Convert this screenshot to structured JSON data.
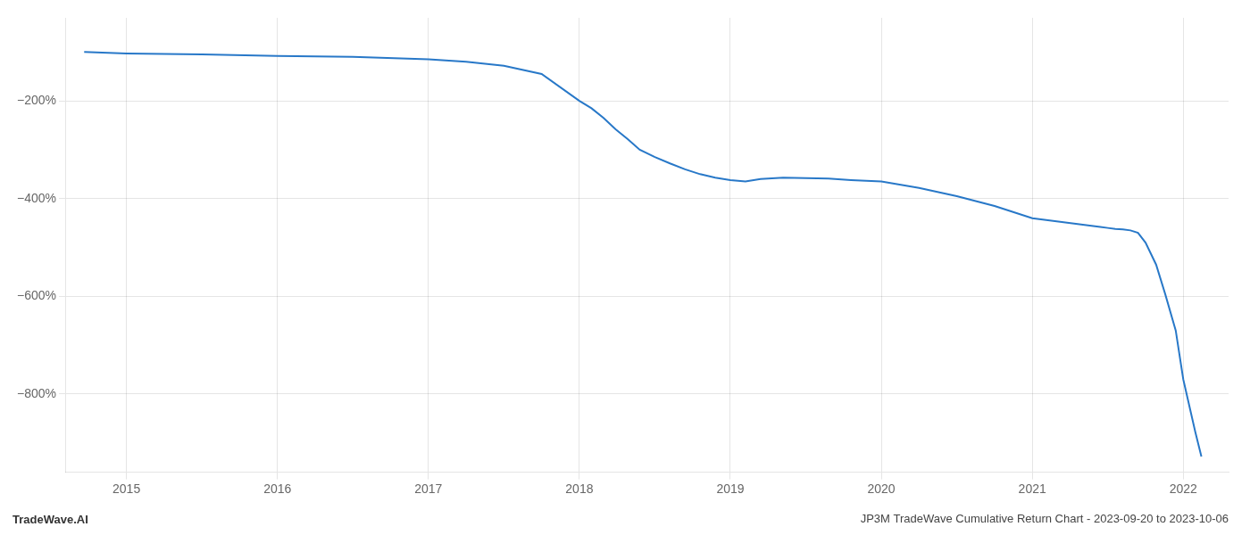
{
  "chart_data": {
    "type": "line",
    "title": "JP3M TradeWave Cumulative Return Chart - 2023-09-20 to 2023-10-06",
    "annotations": [
      "TradeWave.AI"
    ],
    "x": [
      2014.72,
      2015.0,
      2015.5,
      2016.0,
      2016.5,
      2017.0,
      2017.25,
      2017.5,
      2017.75,
      2018.0,
      2018.08,
      2018.16,
      2018.24,
      2018.32,
      2018.4,
      2018.5,
      2018.6,
      2018.7,
      2018.8,
      2018.9,
      2019.0,
      2019.1,
      2019.2,
      2019.35,
      2019.5,
      2019.65,
      2019.8,
      2020.0,
      2020.25,
      2020.5,
      2020.75,
      2021.0,
      2021.15,
      2021.3,
      2021.45,
      2021.5,
      2021.55,
      2021.6,
      2021.65,
      2021.7,
      2021.75,
      2021.82,
      2021.88,
      2021.95,
      2022.0,
      2022.08,
      2022.12
    ],
    "values": [
      -100,
      -103,
      -105,
      -108,
      -110,
      -115,
      -120,
      -128,
      -145,
      -200,
      -215,
      -235,
      -258,
      -278,
      -300,
      -315,
      -328,
      -340,
      -350,
      -357,
      -362,
      -365,
      -360,
      -357,
      -358,
      -359,
      -362,
      -365,
      -378,
      -395,
      -415,
      -440,
      -446,
      -452,
      -458,
      -460,
      -462,
      -463,
      -465,
      -470,
      -490,
      -535,
      -595,
      -670,
      -770,
      -878,
      -928
    ],
    "color": "#2878c8",
    "xlim": [
      2014.6,
      2022.3
    ],
    "ylim": [
      -960,
      -30
    ],
    "xticks": [
      2015,
      2016,
      2017,
      2018,
      2019,
      2020,
      2021,
      2022
    ],
    "yticks": [
      {
        "value": -200,
        "label": "−200%"
      },
      {
        "value": -400,
        "label": "−400%"
      },
      {
        "value": -600,
        "label": "−600%"
      },
      {
        "value": -800,
        "label": "−800%"
      }
    ],
    "grid": true
  }
}
